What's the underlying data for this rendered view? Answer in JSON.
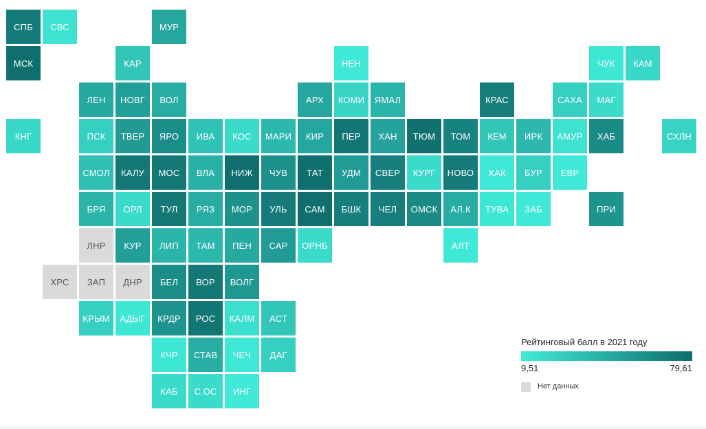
{
  "colors": {
    "low": "#40ead8",
    "high": "#0f6e6e",
    "nodata": "#dadada"
  },
  "legend": {
    "title": "Рейтинговый балл в 2021 году",
    "min_label": "9,51",
    "max_label": "79,61",
    "min": 9.51,
    "max": 79.61,
    "nodata_label": "Нет данных"
  },
  "regions": [
    {
      "label": "СПБ",
      "row": 0,
      "col": 0,
      "score": 72
    },
    {
      "label": "СВС",
      "row": 0,
      "col": 1,
      "score": 14
    },
    {
      "label": "МУР",
      "row": 0,
      "col": 4,
      "score": 48
    },
    {
      "label": "МСК",
      "row": 1,
      "col": 0,
      "score": 79
    },
    {
      "label": "КАР",
      "row": 1,
      "col": 3,
      "score": 30
    },
    {
      "label": "НЕН",
      "row": 1,
      "col": 9,
      "score": 10
    },
    {
      "label": "ЧУК",
      "row": 1,
      "col": 16,
      "score": 12
    },
    {
      "label": "КАМ",
      "row": 1,
      "col": 17,
      "score": 20
    },
    {
      "label": "ЛЕН",
      "row": 2,
      "col": 2,
      "score": 46
    },
    {
      "label": "НОВГ",
      "row": 2,
      "col": 3,
      "score": 52
    },
    {
      "label": "ВОЛ",
      "row": 2,
      "col": 4,
      "score": 44
    },
    {
      "label": "АРХ",
      "row": 2,
      "col": 8,
      "score": 48
    },
    {
      "label": "КОМИ",
      "row": 2,
      "col": 9,
      "score": 22
    },
    {
      "label": "ЯМАЛ",
      "row": 2,
      "col": 10,
      "score": 40
    },
    {
      "label": "КРАС",
      "row": 2,
      "col": 13,
      "score": 70
    },
    {
      "label": "САХА",
      "row": 2,
      "col": 15,
      "score": 24
    },
    {
      "label": "МАГ",
      "row": 2,
      "col": 16,
      "score": 18
    },
    {
      "label": "КНГ",
      "row": 3,
      "col": 0,
      "score": 20
    },
    {
      "label": "ПСК",
      "row": 3,
      "col": 2,
      "score": 24
    },
    {
      "label": "ТВЕР",
      "row": 3,
      "col": 3,
      "score": 55
    },
    {
      "label": "ЯРО",
      "row": 3,
      "col": 4,
      "score": 62
    },
    {
      "label": "ИВА",
      "row": 3,
      "col": 5,
      "score": 32
    },
    {
      "label": "КОС",
      "row": 3,
      "col": 6,
      "score": 18
    },
    {
      "label": "МАРИ",
      "row": 3,
      "col": 7,
      "score": 38
    },
    {
      "label": "КИР",
      "row": 3,
      "col": 8,
      "score": 48
    },
    {
      "label": "ПЕР",
      "row": 3,
      "col": 9,
      "score": 75
    },
    {
      "label": "ХАН",
      "row": 3,
      "col": 10,
      "score": 50
    },
    {
      "label": "ТЮМ",
      "row": 3,
      "col": 11,
      "score": 78
    },
    {
      "label": "ТОМ",
      "row": 3,
      "col": 12,
      "score": 68
    },
    {
      "label": "КЕМ",
      "row": 3,
      "col": 13,
      "score": 30
    },
    {
      "label": "ИРК",
      "row": 3,
      "col": 14,
      "score": 38
    },
    {
      "label": "АМУР",
      "row": 3,
      "col": 15,
      "score": 14
    },
    {
      "label": "ХАБ",
      "row": 3,
      "col": 16,
      "score": 64
    },
    {
      "label": "СХЛН",
      "row": 3,
      "col": 18,
      "score": 22
    },
    {
      "label": "СМОЛ",
      "row": 4,
      "col": 2,
      "score": 34
    },
    {
      "label": "КАЛУ",
      "row": 4,
      "col": 3,
      "score": 74
    },
    {
      "label": "МОС",
      "row": 4,
      "col": 4,
      "score": 74
    },
    {
      "label": "ВЛА",
      "row": 4,
      "col": 5,
      "score": 42
    },
    {
      "label": "НИЖ",
      "row": 4,
      "col": 6,
      "score": 79
    },
    {
      "label": "ЧУВ",
      "row": 4,
      "col": 7,
      "score": 60
    },
    {
      "label": "ТАТ",
      "row": 4,
      "col": 8,
      "score": 79
    },
    {
      "label": "УДМ",
      "row": 4,
      "col": 9,
      "score": 54
    },
    {
      "label": "СВЕР",
      "row": 4,
      "col": 10,
      "score": 70
    },
    {
      "label": "КУРГ",
      "row": 4,
      "col": 11,
      "score": 18
    },
    {
      "label": "НОВО",
      "row": 4,
      "col": 12,
      "score": 72
    },
    {
      "label": "ХАК",
      "row": 4,
      "col": 13,
      "score": 11
    },
    {
      "label": "БУР",
      "row": 4,
      "col": 14,
      "score": 24
    },
    {
      "label": "ЕВР",
      "row": 4,
      "col": 15,
      "score": 10
    },
    {
      "label": "БРЯ",
      "row": 5,
      "col": 2,
      "score": 40
    },
    {
      "label": "ОРЛ",
      "row": 5,
      "col": 3,
      "score": 18
    },
    {
      "label": "ТУЛ",
      "row": 5,
      "col": 4,
      "score": 74
    },
    {
      "label": "РЯЗ",
      "row": 5,
      "col": 5,
      "score": 44
    },
    {
      "label": "МОР",
      "row": 5,
      "col": 6,
      "score": 60
    },
    {
      "label": "УЛЬ",
      "row": 5,
      "col": 7,
      "score": 72
    },
    {
      "label": "САМ",
      "row": 5,
      "col": 8,
      "score": 79
    },
    {
      "label": "БШК",
      "row": 5,
      "col": 9,
      "score": 70
    },
    {
      "label": "ЧЕЛ",
      "row": 5,
      "col": 10,
      "score": 70
    },
    {
      "label": "ОМСК",
      "row": 5,
      "col": 11,
      "score": 64
    },
    {
      "label": "АЛ.К",
      "row": 5,
      "col": 12,
      "score": 44
    },
    {
      "label": "ТУВА",
      "row": 5,
      "col": 13,
      "score": 12
    },
    {
      "label": "ЗАБ",
      "row": 5,
      "col": 14,
      "score": 10
    },
    {
      "label": "ПРИ",
      "row": 5,
      "col": 16,
      "score": 58
    },
    {
      "label": "ЛНР",
      "row": 6,
      "col": 2,
      "score": null
    },
    {
      "label": "КУР",
      "row": 6,
      "col": 3,
      "score": 52
    },
    {
      "label": "ЛИП",
      "row": 6,
      "col": 4,
      "score": 40
    },
    {
      "label": "ТАМ",
      "row": 6,
      "col": 5,
      "score": 38
    },
    {
      "label": "ПЕН",
      "row": 6,
      "col": 6,
      "score": 46
    },
    {
      "label": "САР",
      "row": 6,
      "col": 7,
      "score": 54
    },
    {
      "label": "ОРНБ",
      "row": 6,
      "col": 8,
      "score": 18
    },
    {
      "label": "АЛТ",
      "row": 6,
      "col": 12,
      "score": 10
    },
    {
      "label": "ХРС",
      "row": 7,
      "col": 1,
      "score": null
    },
    {
      "label": "ЗАП",
      "row": 7,
      "col": 2,
      "score": null
    },
    {
      "label": "ДНР",
      "row": 7,
      "col": 3,
      "score": null
    },
    {
      "label": "БЕЛ",
      "row": 7,
      "col": 4,
      "score": 62
    },
    {
      "label": "ВОР",
      "row": 7,
      "col": 5,
      "score": 74
    },
    {
      "label": "ВОЛГ",
      "row": 7,
      "col": 6,
      "score": 56
    },
    {
      "label": "КРЫМ",
      "row": 8,
      "col": 2,
      "score": 24
    },
    {
      "label": "АДЫГ",
      "row": 8,
      "col": 3,
      "score": 12
    },
    {
      "label": "КРДР",
      "row": 8,
      "col": 4,
      "score": 58
    },
    {
      "label": "РОС",
      "row": 8,
      "col": 5,
      "score": 75
    },
    {
      "label": "КАЛМ",
      "row": 8,
      "col": 6,
      "score": 16
    },
    {
      "label": "АСТ",
      "row": 8,
      "col": 7,
      "score": 30
    },
    {
      "label": "КЧР",
      "row": 9,
      "col": 4,
      "score": 12
    },
    {
      "label": "СТАВ",
      "row": 9,
      "col": 5,
      "score": 44
    },
    {
      "label": "ЧЕЧ",
      "row": 9,
      "col": 6,
      "score": 11
    },
    {
      "label": "ДАГ",
      "row": 9,
      "col": 7,
      "score": 24
    },
    {
      "label": "КАБ",
      "row": 10,
      "col": 4,
      "score": 18
    },
    {
      "label": "С.ОС",
      "row": 10,
      "col": 5,
      "score": 18
    },
    {
      "label": "ИНГ",
      "row": 10,
      "col": 6,
      "score": 10
    }
  ]
}
